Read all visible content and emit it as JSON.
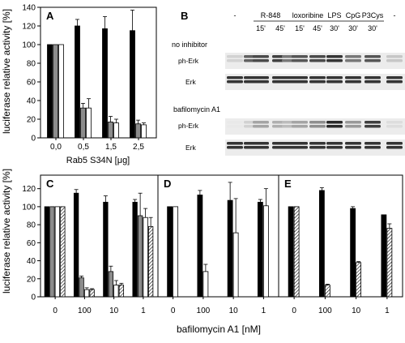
{
  "panels": {
    "A": {
      "letter": "A",
      "ylabel": "luciferase relative activity [%]",
      "xlabel": "Rab5 S34N [μg]",
      "yticks": [
        "0",
        "20",
        "40",
        "60",
        "80",
        "100",
        "120",
        "140"
      ],
      "categories": [
        "0,0",
        "0,5",
        "1,5",
        "2,5"
      ]
    },
    "B": {
      "letter": "B",
      "lane_groups": [
        "-",
        "R-848",
        "loxoribine",
        "LPS",
        "CpG",
        "P3Cys",
        "-"
      ],
      "time_labels": [
        "15'",
        "45'",
        "15'",
        "45'",
        "30'",
        "30'",
        "30'"
      ],
      "condition_1": "no inhibitor",
      "condition_2": "bafilomycin A1",
      "row_labels": [
        "ph-Erk",
        "Erk",
        "ph-Erk",
        "Erk"
      ]
    },
    "C": {
      "letter": "C"
    },
    "D": {
      "letter": "D"
    },
    "E": {
      "letter": "E"
    },
    "bottom": {
      "ylabel": "luciferase relative activity [%]",
      "xlabel": "bafilomycin A1 [nM]",
      "yticks": [
        "0",
        "20",
        "40",
        "60",
        "80",
        "100",
        "120"
      ],
      "categories": [
        "0",
        "100",
        "10",
        "1"
      ]
    }
  },
  "chart_data": [
    {
      "type": "bar",
      "panel": "A",
      "xlabel": "Rab5 S34N [μg]",
      "ylabel": "luciferase relative activity [%]",
      "ylim": [
        0,
        140
      ],
      "categories": [
        "0,0",
        "0,5",
        "1,5",
        "2,5"
      ],
      "series": [
        {
          "fill": "black",
          "values": [
            100,
            120,
            117,
            115
          ],
          "errors": [
            0,
            7,
            13,
            22
          ]
        },
        {
          "fill": "gray",
          "values": [
            100,
            32,
            17,
            15
          ],
          "errors": [
            0,
            5,
            6,
            4
          ]
        },
        {
          "fill": "white",
          "values": [
            100,
            32,
            16,
            14
          ],
          "errors": [
            0,
            10,
            4,
            2
          ]
        }
      ]
    },
    {
      "type": "bar",
      "panel": "C",
      "xlabel": "bafilomycin A1 [nM]",
      "ylabel": "luciferase relative activity [%]",
      "ylim": [
        0,
        135
      ],
      "categories": [
        "0",
        "100",
        "10",
        "1"
      ],
      "series": [
        {
          "fill": "black",
          "values": [
            100,
            115,
            105,
            105
          ],
          "errors": [
            0,
            4,
            7,
            3
          ]
        },
        {
          "fill": "gray",
          "values": [
            100,
            21,
            28,
            90
          ],
          "errors": [
            0,
            2,
            6,
            25
          ]
        },
        {
          "fill": "white",
          "values": [
            100,
            8,
            13,
            88
          ],
          "errors": [
            0,
            2,
            5,
            10
          ]
        },
        {
          "fill": "hatched",
          "values": [
            100,
            8,
            13,
            78
          ],
          "errors": [
            0,
            1,
            2,
            10
          ]
        }
      ]
    },
    {
      "type": "bar",
      "panel": "D",
      "xlabel": "bafilomycin A1 [nM]",
      "ylabel": "luciferase relative activity [%]",
      "ylim": [
        0,
        135
      ],
      "categories": [
        "0",
        "100",
        "10",
        "1"
      ],
      "series": [
        {
          "fill": "black",
          "values": [
            100,
            113,
            107,
            105
          ],
          "errors": [
            0,
            5,
            20,
            3
          ]
        },
        {
          "fill": "white",
          "values": [
            100,
            28,
            71,
            101
          ],
          "errors": [
            0,
            8,
            38,
            19
          ]
        }
      ]
    },
    {
      "type": "bar",
      "panel": "E",
      "xlabel": "bafilomycin A1 [nM]",
      "ylabel": "luciferase relative activity [%]",
      "ylim": [
        0,
        135
      ],
      "categories": [
        "0",
        "100",
        "10",
        "1"
      ],
      "series": [
        {
          "fill": "black",
          "values": [
            100,
            118,
            98,
            91
          ],
          "errors": [
            0,
            3,
            2,
            0
          ]
        },
        {
          "fill": "hatched",
          "values": [
            100,
            13,
            38,
            76
          ],
          "errors": [
            0,
            1,
            1,
            5
          ]
        }
      ]
    }
  ]
}
